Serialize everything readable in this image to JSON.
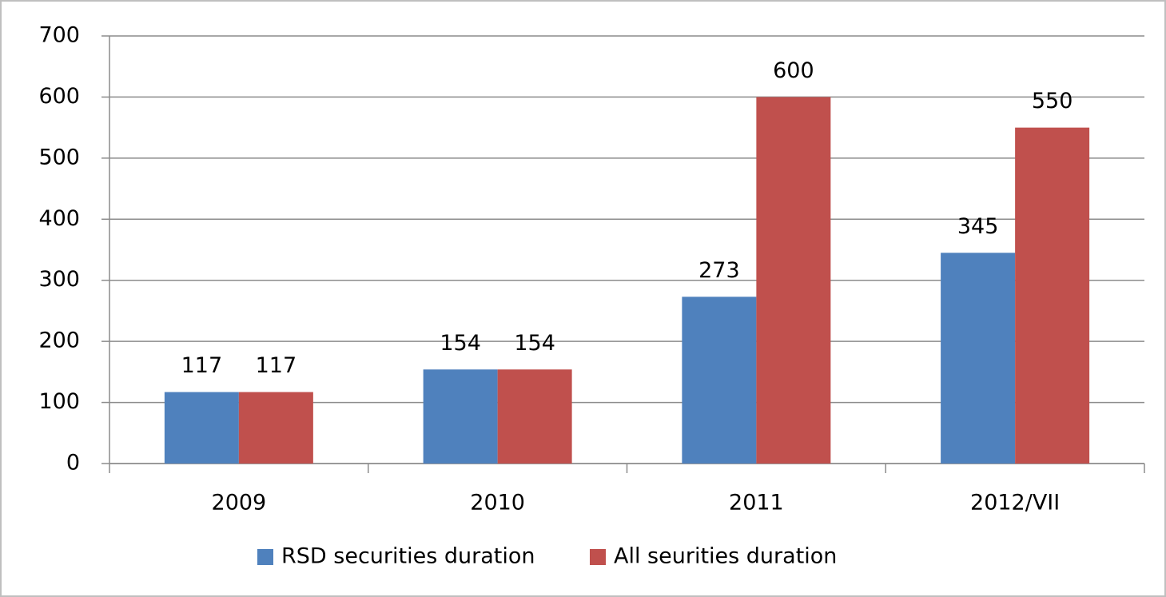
{
  "chart_data": {
    "type": "bar",
    "categories": [
      "2009",
      "2010",
      "2011",
      "2012/VII"
    ],
    "series": [
      {
        "name": "RSD securities duration",
        "color": "#4f81bd",
        "values": [
          117,
          154,
          273,
          345
        ]
      },
      {
        "name": "All seurities duration",
        "color": "#c0504d",
        "values": [
          117,
          154,
          600,
          550
        ]
      }
    ],
    "ylim": [
      0,
      700
    ],
    "yticks": [
      0,
      100,
      200,
      300,
      400,
      500,
      600,
      700
    ],
    "grid": true,
    "legend": "bottom"
  }
}
